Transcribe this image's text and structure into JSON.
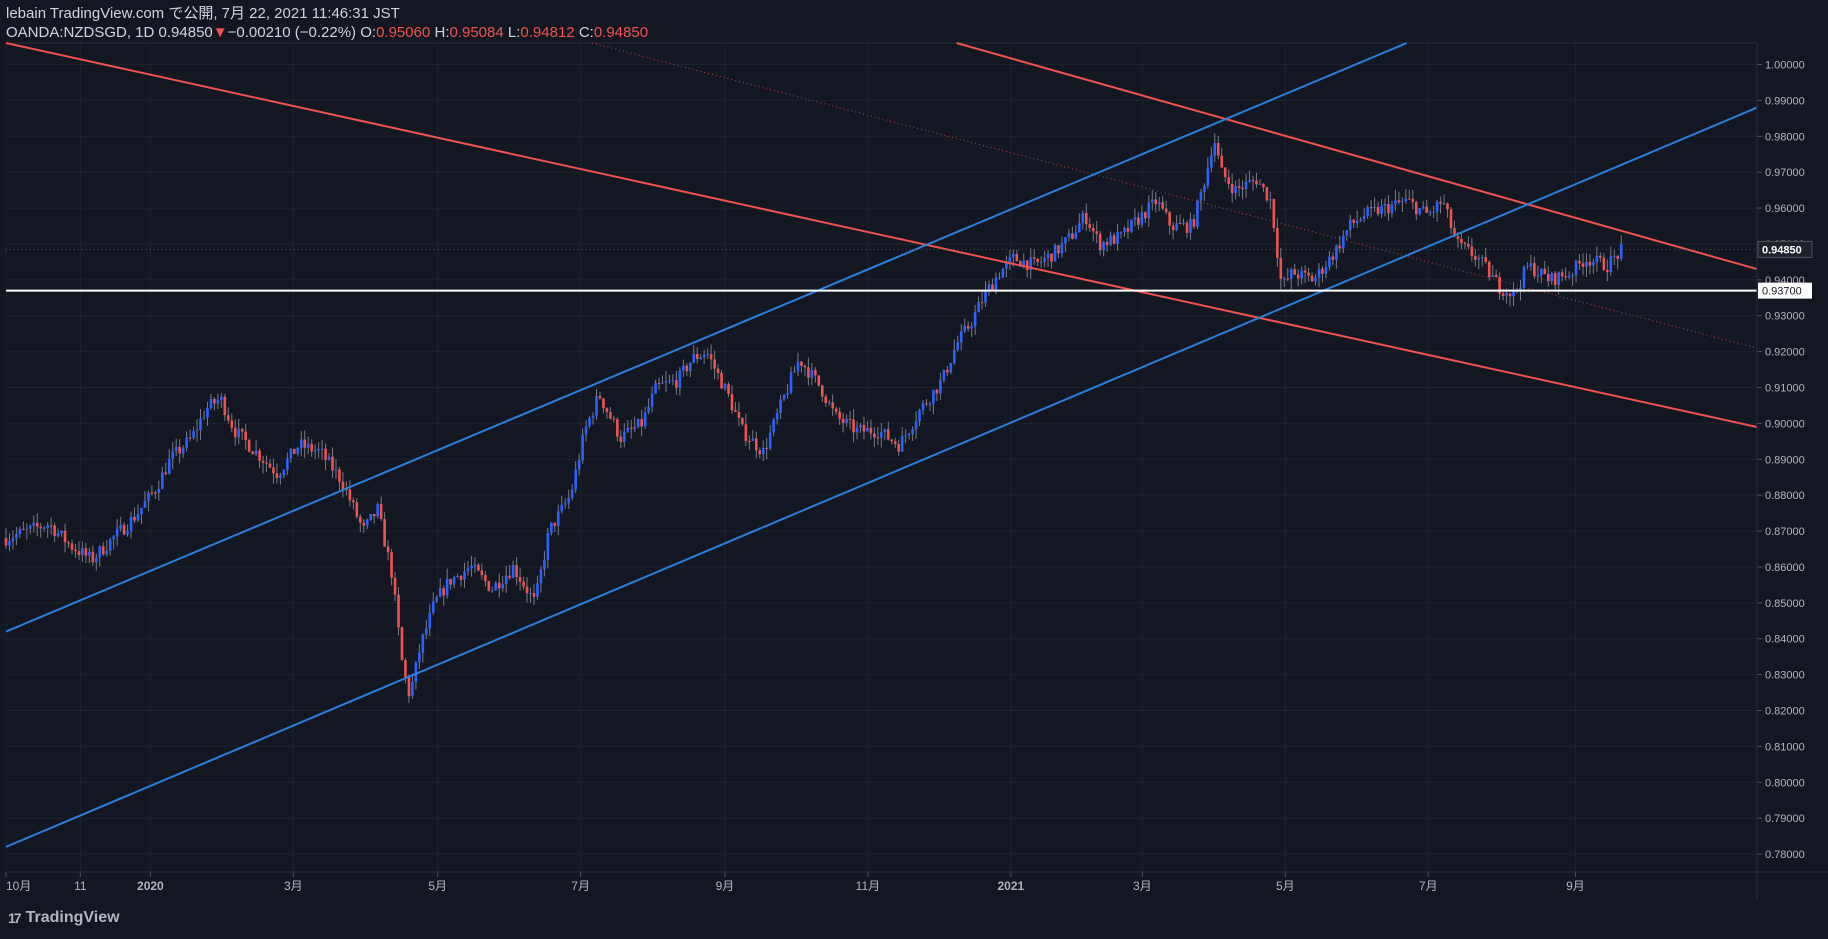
{
  "header": {
    "published": "lebain TradingView.com で公開, 7月 22, 2021 11:46:31 JST",
    "symbol": "OANDA:NZDSGD, 1D",
    "last": "0.94850",
    "arrow": "▼",
    "change": "−0.00210 (−0.22%)",
    "o_label": "O:",
    "o_value": "0.95060",
    "h_label": "H:",
    "h_value": "0.95084",
    "l_label": "L:",
    "l_value": "0.94812",
    "c_label": "C:",
    "c_value": "0.94850"
  },
  "brand": {
    "logo_text": "TradingView",
    "logo_glyph": "17"
  },
  "colors": {
    "background": "#131722",
    "up": "#2962ff",
    "down": "#ef5350",
    "channel_blue": "#2a7fde",
    "channel_red": "#f0534f",
    "grid": "#1e222d",
    "axis_text": "#b2b5be"
  },
  "chart_data": {
    "type": "candlestick",
    "symbol": "OANDA:NZDSGD",
    "interval": "1D",
    "ylim": [
      0.775,
      1.006
    ],
    "y_ticks": [
      "1.00000",
      "0.99000",
      "0.98000",
      "0.97000",
      "0.96000",
      "0.95000",
      "0.94000",
      "0.93000",
      "0.92000",
      "0.91000",
      "0.90000",
      "0.89000",
      "0.88000",
      "0.87000",
      "0.86000",
      "0.85000",
      "0.84000",
      "0.83000",
      "0.82000",
      "0.81000",
      "0.80000",
      "0.79000",
      "0.78000"
    ],
    "x_ticks": [
      {
        "label": "10月",
        "t": 0
      },
      {
        "label": "11",
        "t": 1.04
      },
      {
        "label": "2020",
        "t": 2.02
      },
      {
        "label": "3月",
        "t": 4.02
      },
      {
        "label": "5月",
        "t": 6.04
      },
      {
        "label": "7月",
        "t": 8.04
      },
      {
        "label": "9月",
        "t": 10.06
      },
      {
        "label": "11月",
        "t": 12.06
      },
      {
        "label": "2021",
        "t": 14.06
      },
      {
        "label": "3月",
        "t": 15.9
      },
      {
        "label": "5月",
        "t": 17.9
      },
      {
        "label": "7月",
        "t": 19.9
      },
      {
        "label": "9月",
        "t": 21.96
      }
    ],
    "t_range": [
      0,
      24.5
    ],
    "price_path": [
      [
        0,
        0.868
      ],
      [
        0.3,
        0.87
      ],
      [
        0.6,
        0.872
      ],
      [
        0.9,
        0.866
      ],
      [
        1.2,
        0.862
      ],
      [
        1.5,
        0.868
      ],
      [
        1.8,
        0.874
      ],
      [
        2.1,
        0.882
      ],
      [
        2.3,
        0.89
      ],
      [
        2.6,
        0.896
      ],
      [
        2.8,
        0.904
      ],
      [
        3.0,
        0.907
      ],
      [
        3.2,
        0.898
      ],
      [
        3.5,
        0.892
      ],
      [
        3.8,
        0.886
      ],
      [
        4.1,
        0.894
      ],
      [
        4.4,
        0.892
      ],
      [
        4.7,
        0.884
      ],
      [
        5.0,
        0.87
      ],
      [
        5.2,
        0.876
      ],
      [
        5.4,
        0.858
      ],
      [
        5.55,
        0.832
      ],
      [
        5.65,
        0.824
      ],
      [
        5.8,
        0.838
      ],
      [
        6.0,
        0.85
      ],
      [
        6.2,
        0.856
      ],
      [
        6.5,
        0.86
      ],
      [
        6.8,
        0.854
      ],
      [
        7.1,
        0.86
      ],
      [
        7.4,
        0.85
      ],
      [
        7.6,
        0.87
      ],
      [
        7.9,
        0.88
      ],
      [
        8.1,
        0.898
      ],
      [
        8.3,
        0.908
      ],
      [
        8.6,
        0.896
      ],
      [
        8.9,
        0.9
      ],
      [
        9.1,
        0.91
      ],
      [
        9.4,
        0.912
      ],
      [
        9.6,
        0.918
      ],
      [
        9.8,
        0.92
      ],
      [
        10.1,
        0.908
      ],
      [
        10.3,
        0.898
      ],
      [
        10.6,
        0.892
      ],
      [
        10.9,
        0.908
      ],
      [
        11.1,
        0.918
      ],
      [
        11.4,
        0.91
      ],
      [
        11.6,
        0.902
      ],
      [
        11.9,
        0.898
      ],
      [
        12.2,
        0.898
      ],
      [
        12.5,
        0.894
      ],
      [
        12.8,
        0.904
      ],
      [
        13.1,
        0.912
      ],
      [
        13.3,
        0.922
      ],
      [
        13.5,
        0.928
      ],
      [
        13.7,
        0.936
      ],
      [
        13.9,
        0.942
      ],
      [
        14.1,
        0.946
      ],
      [
        14.4,
        0.944
      ],
      [
        14.7,
        0.948
      ],
      [
        14.9,
        0.952
      ],
      [
        15.1,
        0.958
      ],
      [
        15.3,
        0.95
      ],
      [
        15.6,
        0.952
      ],
      [
        15.9,
        0.958
      ],
      [
        16.1,
        0.962
      ],
      [
        16.3,
        0.955
      ],
      [
        16.6,
        0.955
      ],
      [
        16.8,
        0.97
      ],
      [
        16.9,
        0.98
      ],
      [
        17.0,
        0.97
      ],
      [
        17.2,
        0.965
      ],
      [
        17.5,
        0.968
      ],
      [
        17.7,
        0.962
      ],
      [
        17.85,
        0.938
      ],
      [
        18.0,
        0.942
      ],
      [
        18.3,
        0.94
      ],
      [
        18.6,
        0.948
      ],
      [
        18.8,
        0.955
      ],
      [
        19.0,
        0.958
      ],
      [
        19.3,
        0.96
      ],
      [
        19.6,
        0.962
      ],
      [
        19.9,
        0.958
      ],
      [
        20.1,
        0.962
      ],
      [
        20.3,
        0.95
      ],
      [
        20.6,
        0.946
      ],
      [
        20.9,
        0.938
      ],
      [
        21.1,
        0.936
      ],
      [
        21.3,
        0.944
      ],
      [
        21.6,
        0.94
      ],
      [
        21.9,
        0.942
      ],
      [
        22.1,
        0.946
      ],
      [
        22.4,
        0.944
      ],
      [
        22.6,
        0.948
      ]
    ],
    "trendlines": [
      {
        "name": "red-upper-channel",
        "color": "#f0534f",
        "p1": [
          13.3,
          1.006
        ],
        "p2": [
          24.5,
          0.943
        ]
      },
      {
        "name": "red-lower-channel",
        "color": "#f0534f",
        "p1": [
          0,
          1.006
        ],
        "p2": [
          24.5,
          0.899
        ]
      },
      {
        "name": "red-center-dotted",
        "color": "#b04240",
        "dotted": true,
        "p1": [
          8.2,
          1.006
        ],
        "p2": [
          24.5,
          0.921
        ]
      },
      {
        "name": "blue-upper-channel",
        "color": "#2a7fde",
        "p1": [
          0,
          0.842
        ],
        "p2": [
          19.6,
          1.006
        ]
      },
      {
        "name": "blue-lower-channel",
        "color": "#2a7fde",
        "p1": [
          0,
          0.782
        ],
        "p2": [
          24.5,
          0.988
        ]
      }
    ],
    "horizontal_line": {
      "value": 0.937,
      "label": "0.93700"
    },
    "last_price": {
      "value": 0.9485,
      "label": "0.94850"
    }
  }
}
